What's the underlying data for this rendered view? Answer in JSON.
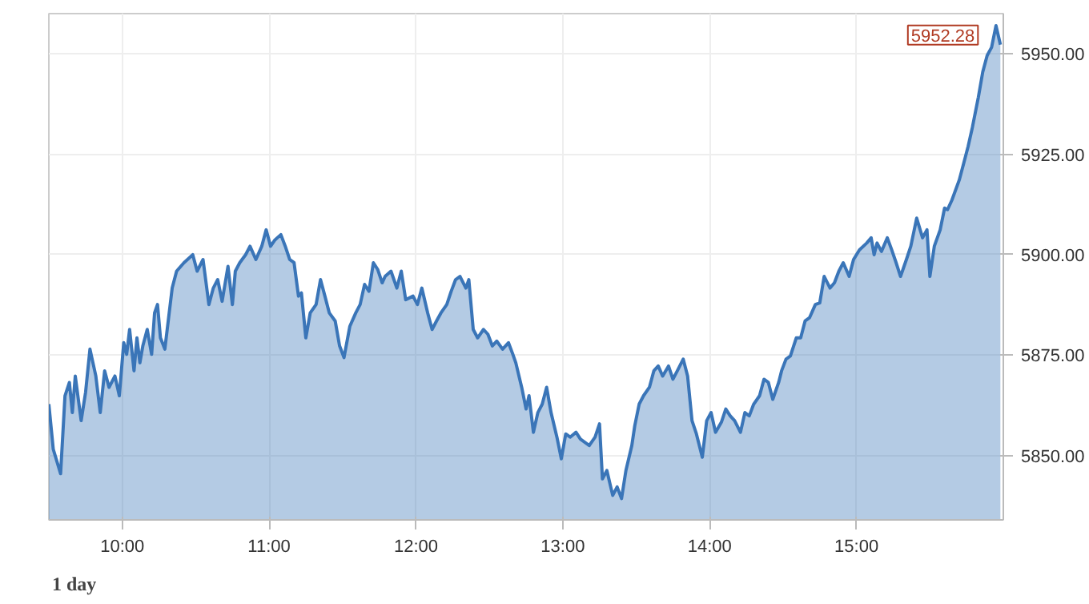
{
  "chart_data": {
    "type": "area",
    "annotations": [
      "1 day",
      {
        "text": "5952.28",
        "x": 15.98,
        "y": 5952.28
      }
    ],
    "x": [
      9.5,
      9.53,
      9.58,
      9.61,
      9.64,
      9.66,
      9.68,
      9.72,
      9.75,
      9.78,
      9.82,
      9.85,
      9.88,
      9.91,
      9.95,
      9.98,
      10.01,
      10.03,
      10.05,
      10.08,
      10.1,
      10.12,
      10.14,
      10.17,
      10.2,
      10.22,
      10.24,
      10.26,
      10.29,
      10.34,
      10.37,
      10.42,
      10.48,
      10.51,
      10.55,
      10.59,
      10.62,
      10.65,
      10.68,
      10.72,
      10.75,
      10.77,
      10.8,
      10.84,
      10.87,
      10.91,
      10.95,
      10.98,
      11.01,
      11.04,
      11.08,
      11.11,
      11.14,
      11.17,
      11.2,
      11.22,
      11.25,
      11.28,
      11.32,
      11.35,
      11.38,
      11.41,
      11.45,
      11.48,
      11.51,
      11.55,
      11.59,
      11.62,
      11.65,
      11.68,
      11.71,
      11.74,
      11.77,
      11.79,
      11.83,
      11.87,
      11.9,
      11.93,
      11.98,
      12.01,
      12.04,
      12.08,
      12.11,
      12.14,
      12.17,
      12.21,
      12.24,
      12.27,
      12.3,
      12.34,
      12.36,
      12.39,
      12.42,
      12.46,
      12.49,
      12.52,
      12.55,
      12.59,
      12.63,
      12.66,
      12.68,
      12.72,
      12.75,
      12.77,
      12.8,
      12.83,
      12.86,
      12.89,
      12.92,
      12.96,
      12.99,
      13.02,
      13.05,
      13.09,
      13.12,
      13.15,
      13.18,
      13.22,
      13.25,
      13.27,
      13.3,
      13.34,
      13.37,
      13.4,
      13.43,
      13.47,
      13.49,
      13.52,
      13.55,
      13.59,
      13.62,
      13.65,
      13.68,
      13.72,
      13.75,
      13.78,
      13.82,
      13.85,
      13.88,
      13.91,
      13.95,
      13.98,
      14.01,
      14.04,
      14.08,
      14.11,
      14.14,
      14.17,
      14.21,
      14.24,
      14.27,
      14.3,
      14.34,
      14.37,
      14.4,
      14.43,
      14.47,
      14.49,
      14.52,
      14.55,
      14.59,
      14.62,
      14.65,
      14.68,
      14.72,
      14.75,
      14.78,
      14.82,
      14.85,
      14.88,
      14.91,
      14.95,
      14.98,
      15.02,
      15.07,
      15.1,
      15.12,
      15.14,
      15.17,
      15.21,
      15.24,
      15.27,
      15.3,
      15.34,
      15.37,
      15.41,
      15.45,
      15.48,
      15.5,
      15.53,
      15.57,
      15.6,
      15.62,
      15.65,
      15.7,
      15.73,
      15.76,
      15.79,
      15.83,
      15.86,
      15.89,
      15.92,
      15.95,
      15.98
    ],
    "series": [
      {
        "color": "#3a75b8",
        "values": [
          5862.8,
          5851.6,
          5845.5,
          5864.9,
          5868.2,
          5860.7,
          5869.8,
          5858.7,
          5865.7,
          5876.5,
          5869.8,
          5860.7,
          5871.1,
          5867.0,
          5869.8,
          5864.9,
          5878.1,
          5875.2,
          5881.4,
          5871.1,
          5879.3,
          5873.1,
          5877.3,
          5881.4,
          5875.2,
          5885.5,
          5887.6,
          5879.3,
          5876.5,
          5891.7,
          5895.9,
          5898.0,
          5900.0,
          5895.9,
          5898.8,
          5887.6,
          5891.7,
          5893.8,
          5888.4,
          5897.1,
          5887.6,
          5895.9,
          5898.0,
          5900.0,
          5902.1,
          5898.8,
          5902.1,
          5906.2,
          5902.1,
          5903.7,
          5905.0,
          5902.1,
          5898.8,
          5898.0,
          5889.7,
          5890.5,
          5879.3,
          5885.5,
          5887.6,
          5893.8,
          5889.7,
          5885.5,
          5883.5,
          5877.3,
          5874.4,
          5882.2,
          5885.5,
          5887.6,
          5892.6,
          5890.9,
          5898.0,
          5896.3,
          5893.0,
          5894.6,
          5895.9,
          5891.7,
          5895.9,
          5888.8,
          5889.7,
          5887.6,
          5891.7,
          5885.5,
          5881.4,
          5883.5,
          5885.5,
          5887.6,
          5890.9,
          5893.8,
          5894.6,
          5891.7,
          5893.8,
          5881.4,
          5879.3,
          5881.4,
          5880.2,
          5877.3,
          5878.5,
          5876.5,
          5878.1,
          5875.2,
          5873.1,
          5867.0,
          5861.6,
          5864.9,
          5855.8,
          5860.7,
          5862.8,
          5867.0,
          5860.7,
          5854.6,
          5849.2,
          5855.4,
          5854.6,
          5855.8,
          5854.1,
          5853.3,
          5852.5,
          5854.6,
          5857.9,
          5844.2,
          5846.3,
          5840.1,
          5842.2,
          5839.3,
          5846.3,
          5852.5,
          5857.4,
          5862.8,
          5864.9,
          5867.0,
          5871.1,
          5872.3,
          5869.8,
          5872.3,
          5869.0,
          5871.1,
          5874.0,
          5869.8,
          5858.7,
          5855.4,
          5849.6,
          5858.7,
          5860.7,
          5855.8,
          5858.3,
          5861.6,
          5859.9,
          5858.7,
          5855.8,
          5860.7,
          5859.9,
          5862.8,
          5864.9,
          5869.0,
          5868.2,
          5864.0,
          5868.2,
          5871.1,
          5874.0,
          5874.8,
          5879.3,
          5879.3,
          5883.5,
          5884.3,
          5887.6,
          5888.0,
          5894.6,
          5891.7,
          5893.0,
          5895.9,
          5898.0,
          5894.6,
          5898.8,
          5901.2,
          5902.9,
          5904.2,
          5900.0,
          5902.9,
          5900.8,
          5904.2,
          5901.2,
          5898.0,
          5894.6,
          5898.8,
          5902.1,
          5909.1,
          5904.2,
          5906.2,
          5894.6,
          5902.1,
          5906.2,
          5911.6,
          5911.2,
          5913.6,
          5918.6,
          5922.7,
          5926.9,
          5931.8,
          5939.2,
          5945.5,
          5949.6,
          5951.6,
          5957.0,
          5952.28
        ]
      }
    ],
    "xlim": [
      9.5,
      16
    ],
    "xticks": [
      {
        "value": 10,
        "label": "10:00"
      },
      {
        "value": 11,
        "label": "11:00"
      },
      {
        "value": 12,
        "label": "12:00"
      },
      {
        "value": 13,
        "label": "13:00"
      },
      {
        "value": 14,
        "label": "14:00"
      },
      {
        "value": 15,
        "label": "15:00"
      }
    ],
    "ylim": [
      5834,
      5960
    ],
    "yticks": [
      {
        "value": 5850,
        "label": "5850.00"
      },
      {
        "value": 5875,
        "label": "5875.00"
      },
      {
        "value": 5900,
        "label": "5900.00"
      },
      {
        "value": 5925,
        "label": "5925.00"
      },
      {
        "value": 5950,
        "label": "5950.00"
      }
    ],
    "grid": true,
    "marker": "none",
    "line_style": "solid"
  }
}
